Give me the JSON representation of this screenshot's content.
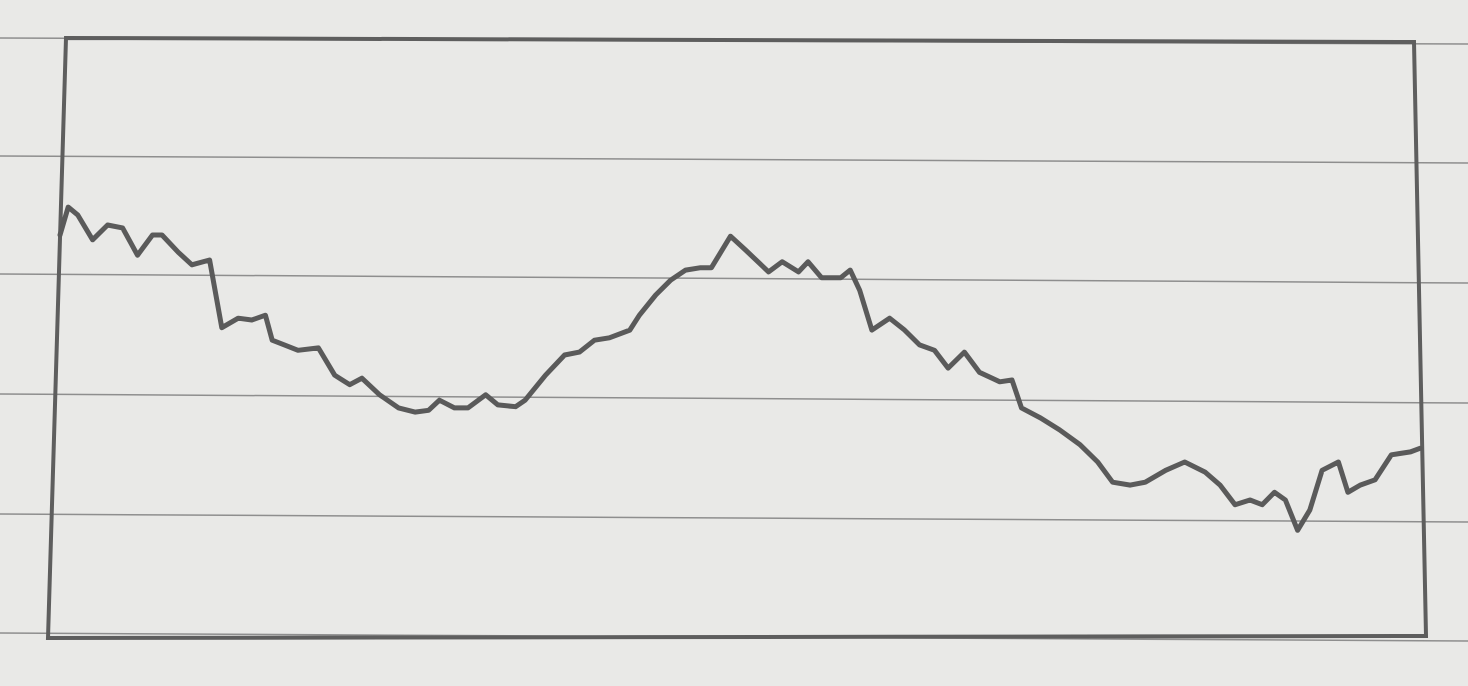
{
  "chart_data": {
    "type": "line",
    "x": [
      0,
      0.6,
      1.3,
      2.4,
      3.5,
      4.6,
      5.7,
      6.8,
      7.5,
      8.7,
      9.7,
      11.0,
      11.9,
      13.1,
      14.1,
      15.1,
      15.6,
      16.5,
      17.5,
      19.0,
      20.2,
      21.3,
      22.2,
      23.5,
      24.9,
      26.1,
      27.1,
      27.9,
      29.0,
      30.0,
      31.3,
      32.2,
      33.5,
      34.2,
      35.7,
      37.1,
      38.2,
      39.3,
      40.4,
      41.9,
      42.6,
      43.8,
      44.9,
      46.0,
      47.1,
      47.9,
      49.3,
      50.4,
      52.1,
      53.1,
      54.3,
      55.0,
      56.0,
      57.4,
      58.1,
      58.8,
      59.7,
      61.0,
      62.1,
      63.2,
      64.3,
      65.3,
      66.5,
      67.6,
      69.1,
      70.0,
      70.7,
      72.1,
      73.5,
      75.0,
      76.3,
      77.4,
      78.7,
      79.8,
      81.3,
      82.7,
      84.2,
      85.3,
      86.4,
      87.5,
      88.4,
      89.3,
      90.1,
      91.0,
      91.9,
      92.8,
      94.0,
      94.7,
      95.6,
      96.7,
      97.9,
      99.3,
      100
    ],
    "values": [
      67.5,
      72.2,
      70.9,
      66.7,
      69.2,
      68.7,
      64.1,
      67.5,
      67.5,
      64.6,
      62.5,
      63.3,
      51.9,
      53.5,
      53.2,
      54.0,
      49.8,
      49.0,
      48.1,
      48.5,
      43.9,
      42.3,
      43.4,
      40.6,
      38.4,
      37.7,
      38.0,
      39.7,
      38.4,
      38.4,
      40.6,
      38.9,
      38.6,
      39.7,
      43.9,
      47.3,
      47.8,
      49.8,
      50.2,
      51.5,
      54.0,
      57.4,
      59.9,
      61.6,
      62.0,
      62.0,
      67.3,
      65.0,
      61.3,
      63.0,
      61.3,
      63.0,
      60.3,
      60.3,
      61.6,
      58.2,
      51.5,
      53.5,
      51.5,
      49.0,
      48.1,
      45.1,
      47.8,
      44.4,
      42.8,
      43.1,
      38.4,
      36.7,
      34.7,
      32.2,
      29.3,
      25.9,
      25.4,
      25.9,
      27.9,
      29.3,
      27.6,
      25.4,
      22.1,
      22.9,
      22.1,
      24.2,
      22.9,
      17.8,
      21.2,
      27.9,
      29.3,
      24.2,
      25.4,
      26.3,
      30.5,
      31.0,
      31.6
    ],
    "color": "#5a5a5a",
    "xlim": [
      0,
      100
    ],
    "ylim": [
      0,
      100
    ]
  }
}
